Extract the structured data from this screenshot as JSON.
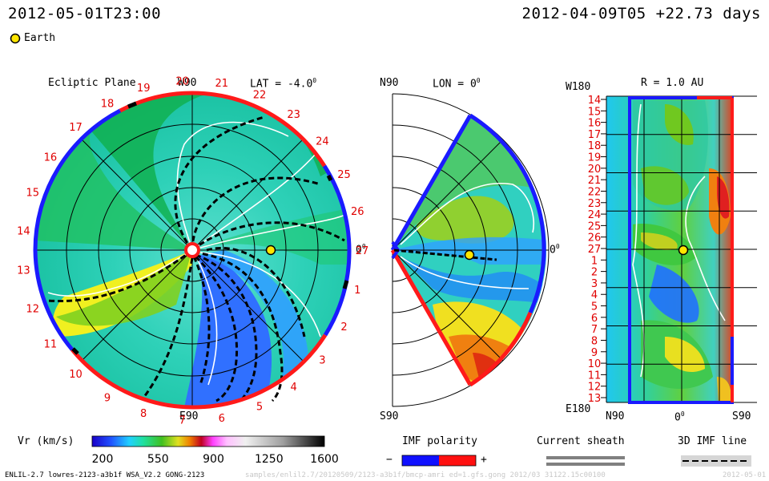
{
  "header": {
    "left_datetime": "2012-05-01T23:00",
    "right_datetime": "2012-04-09T05 +22.73 days"
  },
  "legend": {
    "earth_label": "Earth",
    "earth_color": "#ffe600"
  },
  "panels": {
    "ecliptic": {
      "title": "Ecliptic Plane",
      "top_label": "W90",
      "bottom_label": "E90",
      "lat_label": "LAT = -4.0",
      "degree_mark": "0",
      "right_label": "0",
      "carrington": [
        "1",
        "2",
        "3",
        "4",
        "5",
        "6",
        "7",
        "8",
        "9",
        "10",
        "11",
        "12",
        "13",
        "14",
        "15",
        "16",
        "17",
        "18",
        "19",
        "20",
        "21",
        "22",
        "23",
        "24",
        "25",
        "26",
        "27"
      ]
    },
    "meridional": {
      "top_left": "N90",
      "lon_label": "LON = 0",
      "degree_mark": "0",
      "right_label": "0",
      "bottom_left": "S90"
    },
    "radial": {
      "title": "R = 1.0 AU",
      "top_left": "W180",
      "bottom_left": "E180",
      "x_ticks": [
        "N90",
        "0",
        "S90"
      ],
      "rows": [
        "14",
        "15",
        "16",
        "17",
        "18",
        "19",
        "20",
        "21",
        "22",
        "23",
        "24",
        "25",
        "26",
        "27",
        "1",
        "2",
        "3",
        "4",
        "5",
        "6",
        "7",
        "8",
        "9",
        "10",
        "11",
        "12",
        "13"
      ]
    }
  },
  "chart_data": {
    "type": "heatmap",
    "title": "Vr (km/s)",
    "colorbar": {
      "label": "Vr (km/s)",
      "min": 200,
      "max": 1600,
      "ticks": [
        "200",
        "550",
        "900",
        "1250",
        "1600"
      ]
    },
    "earth_position": {
      "lon_deg": 0,
      "lat_deg": -4.0,
      "r_au": 1.0
    },
    "time": {
      "date": "2012-05-01T23:00",
      "reference": "2012-04-09T05",
      "offset_days": 22.73
    }
  },
  "bottom_legends": {
    "imf_polarity": {
      "title": "IMF polarity",
      "minus": "−",
      "plus": "+",
      "neg_color": "#1010ff",
      "pos_color": "#ff1010"
    },
    "current_sheath": {
      "title": "Current sheath"
    },
    "imf_line": {
      "title": "3D IMF line"
    }
  },
  "footer": {
    "model": "ENLIL-2.7 lowres-2123-a3b1f WSA_V2.2 GONG-2123",
    "path": "samples/enlil2.7/20120509/2123-a3b1f/bmcp-amri ed=1.gfs.gong 2012/03 31122.15c00100",
    "date_tail": "2012-05-01"
  }
}
